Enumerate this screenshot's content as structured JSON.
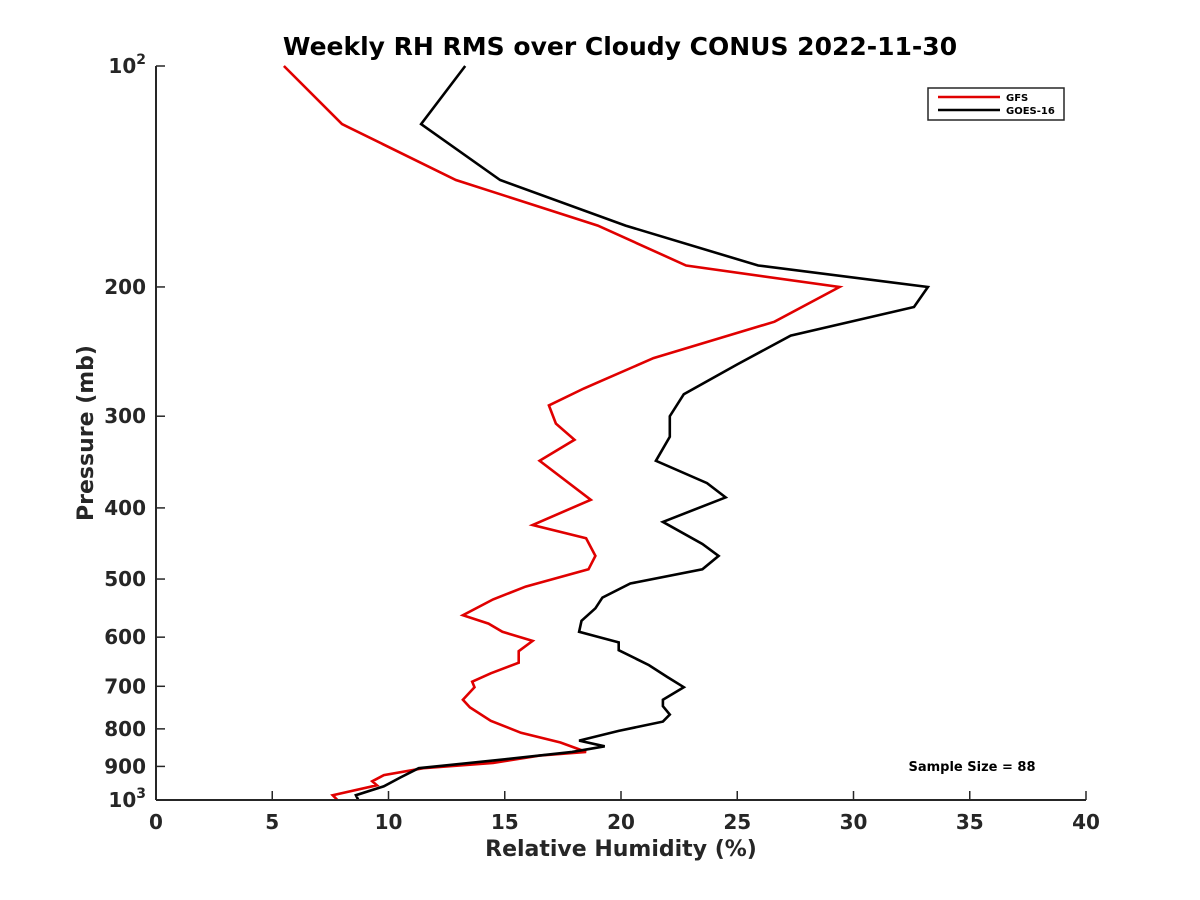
{
  "chart_data": {
    "type": "line",
    "title": "Weekly RH RMS over Cloudy CONUS 2022-11-30",
    "xlabel": "Relative Humidity (%)",
    "ylabel": "Pressure (mb)",
    "xlim": [
      0,
      40
    ],
    "ylim": [
      100,
      1000
    ],
    "y_scale": "log",
    "y_reversed": true,
    "grid": false,
    "legend_position": "top-right",
    "x_ticks": [
      0,
      5,
      10,
      15,
      20,
      25,
      30,
      35,
      40
    ],
    "y_ticks": [
      {
        "value": 100,
        "base": "10",
        "exp": "2"
      },
      {
        "value": 200,
        "label": "200"
      },
      {
        "value": 300,
        "label": "300"
      },
      {
        "value": 400,
        "label": "400"
      },
      {
        "value": 500,
        "label": "500"
      },
      {
        "value": 600,
        "label": "600"
      },
      {
        "value": 700,
        "label": "700"
      },
      {
        "value": 800,
        "label": "800"
      },
      {
        "value": 900,
        "label": "900"
      },
      {
        "value": 1000,
        "base": "10",
        "exp": "3"
      }
    ],
    "annotation": "Sample Size = 88",
    "series": [
      {
        "name": "GFS",
        "color": "#e00000",
        "points": [
          [
            5.5,
            100
          ],
          [
            8.0,
            120
          ],
          [
            12.9,
            143
          ],
          [
            19.0,
            165
          ],
          [
            22.8,
            187
          ],
          [
            29.4,
            200
          ],
          [
            26.6,
            223
          ],
          [
            21.4,
            250
          ],
          [
            18.4,
            275
          ],
          [
            16.9,
            290
          ],
          [
            17.2,
            307
          ],
          [
            18.0,
            323
          ],
          [
            16.5,
            345
          ],
          [
            18.7,
            390
          ],
          [
            16.2,
            422
          ],
          [
            18.5,
            440
          ],
          [
            18.9,
            465
          ],
          [
            18.6,
            485
          ],
          [
            15.9,
            512
          ],
          [
            14.5,
            533
          ],
          [
            13.2,
            560
          ],
          [
            14.3,
            575
          ],
          [
            14.9,
            590
          ],
          [
            16.2,
            607
          ],
          [
            15.6,
            627
          ],
          [
            15.6,
            650
          ],
          [
            14.4,
            672
          ],
          [
            13.6,
            690
          ],
          [
            13.7,
            702
          ],
          [
            13.2,
            730
          ],
          [
            13.5,
            748
          ],
          [
            14.4,
            780
          ],
          [
            15.7,
            810
          ],
          [
            17.4,
            835
          ],
          [
            18.5,
            860
          ],
          [
            16.5,
            870
          ],
          [
            14.5,
            890
          ],
          [
            11.5,
            905
          ],
          [
            9.8,
            925
          ],
          [
            9.3,
            943
          ],
          [
            9.5,
            955
          ],
          [
            7.6,
            985
          ],
          [
            7.8,
            1000
          ]
        ]
      },
      {
        "name": "GOES-16",
        "color": "#000000",
        "points": [
          [
            13.3,
            100
          ],
          [
            11.4,
            120
          ],
          [
            14.8,
            143
          ],
          [
            20.2,
            165
          ],
          [
            25.9,
            187
          ],
          [
            33.2,
            200
          ],
          [
            32.6,
            213
          ],
          [
            27.3,
            233
          ],
          [
            25.0,
            255
          ],
          [
            22.7,
            280
          ],
          [
            22.1,
            300
          ],
          [
            22.1,
            320
          ],
          [
            21.5,
            345
          ],
          [
            23.7,
            370
          ],
          [
            24.5,
            387
          ],
          [
            21.8,
            418
          ],
          [
            23.5,
            448
          ],
          [
            24.2,
            465
          ],
          [
            23.5,
            485
          ],
          [
            20.4,
            507
          ],
          [
            19.2,
            530
          ],
          [
            18.9,
            548
          ],
          [
            18.3,
            570
          ],
          [
            18.2,
            590
          ],
          [
            19.9,
            610
          ],
          [
            19.9,
            625
          ],
          [
            21.2,
            655
          ],
          [
            22.0,
            680
          ],
          [
            22.7,
            702
          ],
          [
            21.8,
            730
          ],
          [
            21.8,
            745
          ],
          [
            22.1,
            765
          ],
          [
            21.8,
            782
          ],
          [
            19.9,
            805
          ],
          [
            18.2,
            830
          ],
          [
            19.3,
            845
          ],
          [
            17.9,
            860
          ],
          [
            15.0,
            880
          ],
          [
            11.3,
            905
          ],
          [
            10.5,
            932
          ],
          [
            9.8,
            958
          ],
          [
            8.6,
            985
          ],
          [
            8.7,
            1000
          ]
        ]
      }
    ]
  }
}
